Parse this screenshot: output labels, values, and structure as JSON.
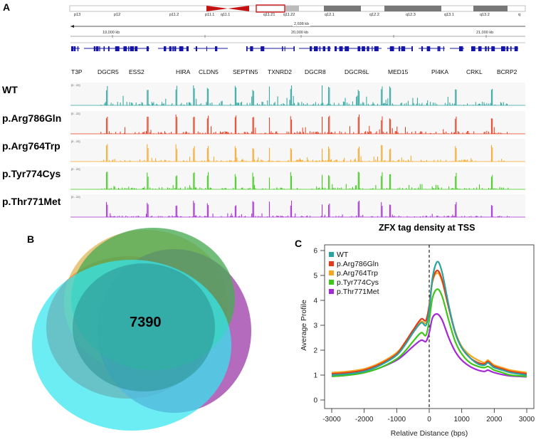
{
  "panel_a": {
    "letter": "A",
    "ideogram_bands": [
      "p13",
      "p12",
      "p11.2",
      "p11.1",
      "q11.1",
      "q11.21",
      "q11.22",
      "q12.1",
      "q12.2",
      "q12.3",
      "q13.1",
      "q13.2",
      "q"
    ],
    "region_length": "2,698 kb",
    "scale_ticks": [
      "19,000 kb",
      "20,000 kb",
      "21,000 kb"
    ],
    "genes": [
      "T3P",
      "DGCR5",
      "ESS2",
      "HIRA",
      "CLDN5",
      "SEPTIN5",
      "TXNRD2",
      "DGCR8",
      "DGCR6L",
      "MED15",
      "PI4KA",
      "CRKL",
      "BCRP2"
    ],
    "tracks": [
      {
        "label": "WT",
        "range": "[0 - 22]",
        "color": "#2aa39e"
      },
      {
        "label": "p.Arg786Gln",
        "range": "[0 - 22]",
        "color": "#e43a1c"
      },
      {
        "label": "p.Arg764Trp",
        "range": "[0 - 22]",
        "color": "#f5a623"
      },
      {
        "label": "p.Tyr774Cys",
        "range": "[0 - 22]",
        "color": "#3ec71a"
      },
      {
        "label": "p.Thr771Met",
        "range": "[0 - 22]",
        "color": "#a328d6"
      }
    ]
  },
  "panel_b": {
    "letter": "B",
    "count": "7390"
  },
  "panel_c": {
    "letter": "C",
    "title": "ZFX tag density at TSS"
  },
  "chart_data": {
    "type": "line",
    "title": "ZFX tag density at TSS",
    "xlabel": "Relative Distance (bps)",
    "ylabel": "Average Profile",
    "xlim": [
      -3000,
      3000
    ],
    "ylim": [
      0,
      6
    ],
    "xticks": [
      -3000,
      -2000,
      -1000,
      0,
      1000,
      2000,
      3000
    ],
    "yticks": [
      0,
      1,
      2,
      3,
      4,
      5,
      6
    ],
    "legend_position": "top-left",
    "vertical_line_at": 0,
    "x": [
      -3000,
      -2500,
      -2000,
      -1500,
      -1000,
      -750,
      -500,
      -250,
      -100,
      0,
      100,
      250,
      400,
      600,
      800,
      1000,
      1250,
      1500,
      1700,
      1800,
      1900,
      2000,
      2250,
      2500,
      3000
    ],
    "series": [
      {
        "name": "WT",
        "color": "#2aa39e",
        "values": [
          1.0,
          1.05,
          1.15,
          1.4,
          1.8,
          2.2,
          2.7,
          3.1,
          3.0,
          3.6,
          4.9,
          5.55,
          5.1,
          3.8,
          2.7,
          2.1,
          1.7,
          1.45,
          1.4,
          1.5,
          1.4,
          1.3,
          1.2,
          1.1,
          1.0
        ]
      },
      {
        "name": "p.Arg786Gln",
        "color": "#e43a1c",
        "values": [
          1.05,
          1.1,
          1.2,
          1.45,
          1.85,
          2.3,
          2.8,
          3.25,
          3.2,
          3.8,
          4.8,
          5.2,
          4.8,
          3.7,
          2.7,
          2.1,
          1.7,
          1.5,
          1.45,
          1.55,
          1.45,
          1.35,
          1.25,
          1.15,
          1.05
        ]
      },
      {
        "name": "p.Arg764Trp",
        "color": "#f5a623",
        "values": [
          1.1,
          1.15,
          1.25,
          1.5,
          1.9,
          2.3,
          2.75,
          3.15,
          3.1,
          3.7,
          4.75,
          5.1,
          4.75,
          3.7,
          2.75,
          2.15,
          1.8,
          1.6,
          1.5,
          1.6,
          1.5,
          1.4,
          1.3,
          1.2,
          1.1
        ]
      },
      {
        "name": "p.Tyr774Cys",
        "color": "#3ec71a",
        "values": [
          0.95,
          1.0,
          1.1,
          1.3,
          1.65,
          1.95,
          2.35,
          2.7,
          2.6,
          3.2,
          4.1,
          4.45,
          4.15,
          3.2,
          2.35,
          1.85,
          1.5,
          1.35,
          1.3,
          1.35,
          1.28,
          1.2,
          1.1,
          1.0,
          0.95
        ]
      },
      {
        "name": "p.Thr771Met",
        "color": "#a328d6",
        "values": [
          0.95,
          1.0,
          1.1,
          1.3,
          1.6,
          1.85,
          2.15,
          2.4,
          2.35,
          2.7,
          3.3,
          3.45,
          3.2,
          2.5,
          1.95,
          1.6,
          1.35,
          1.2,
          1.15,
          1.2,
          1.15,
          1.1,
          1.02,
          0.97,
          0.93
        ]
      }
    ]
  }
}
